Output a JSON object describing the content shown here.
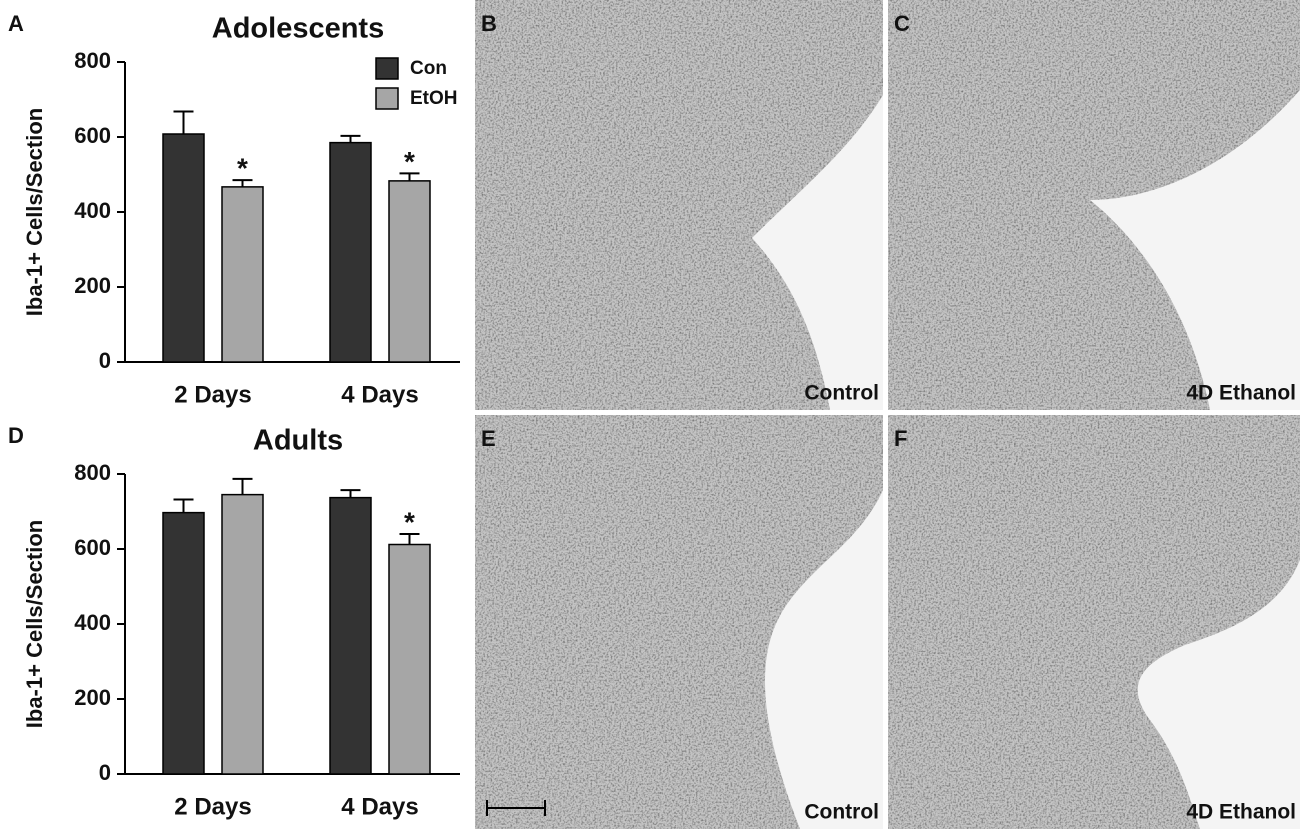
{
  "chart_data": [
    {
      "type": "bar",
      "panel": "A",
      "title": "Adolescents",
      "y_label": "Iba-1+ Cells/Section",
      "categories": [
        "2 Days",
        "4 Days"
      ],
      "series": [
        {
          "name": "Con",
          "color": "#333333",
          "values": [
            608,
            585
          ],
          "errors": [
            60,
            18
          ],
          "markers": [
            null,
            null
          ]
        },
        {
          "name": "EtOH",
          "color": "#a6a6a6",
          "values": [
            467,
            483
          ],
          "errors": [
            18,
            20
          ],
          "markers": [
            "*",
            "*"
          ]
        }
      ],
      "ylim": [
        0,
        800
      ],
      "yticks": [
        0,
        200,
        400,
        600,
        800
      ],
      "legend": "top-right"
    },
    {
      "type": "bar",
      "panel": "D",
      "title": "Adults",
      "y_label": "Iba-1+ Cells/Section",
      "categories": [
        "2 Days",
        "4 Days"
      ],
      "series": [
        {
          "name": "Con",
          "color": "#333333",
          "values": [
            697,
            737
          ],
          "errors": [
            35,
            20
          ],
          "markers": [
            null,
            null
          ]
        },
        {
          "name": "EtOH",
          "color": "#a6a6a6",
          "values": [
            745,
            612
          ],
          "errors": [
            42,
            28
          ],
          "markers": [
            null,
            "*"
          ]
        }
      ],
      "ylim": [
        0,
        800
      ],
      "yticks": [
        0,
        200,
        400,
        600,
        800
      ]
    }
  ],
  "images": [
    {
      "panel": "B",
      "caption": "Control"
    },
    {
      "panel": "C",
      "caption": "4D Ethanol"
    },
    {
      "panel": "E",
      "caption": "Control"
    },
    {
      "panel": "F",
      "caption": "4D Ethanol"
    }
  ]
}
